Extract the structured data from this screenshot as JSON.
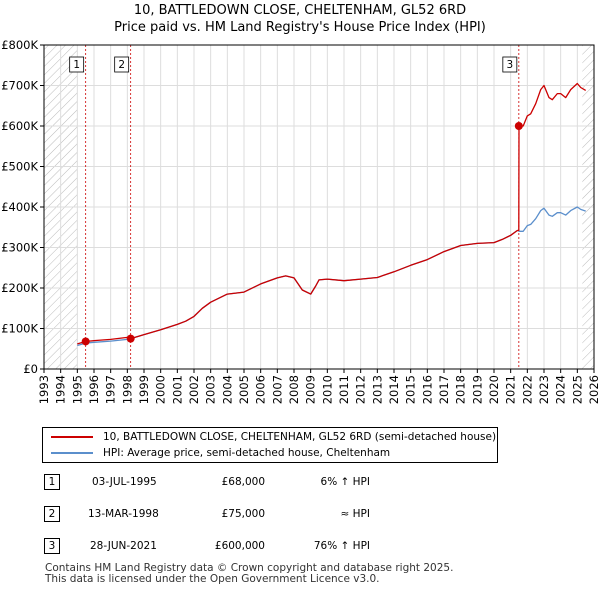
{
  "title_line1": "10, BATTLEDOWN CLOSE, CHELTENHAM, GL52 6RD",
  "title_line2": "Price paid vs. HM Land Registry's House Price Index (HPI)",
  "chart_data": {
    "type": "line",
    "xlim": [
      1993,
      2026
    ],
    "ylim": [
      0,
      800000
    ],
    "x_ticks": [
      "1993",
      "1994",
      "1995",
      "1996",
      "1997",
      "1998",
      "1999",
      "2000",
      "2001",
      "2002",
      "2003",
      "2004",
      "2005",
      "2006",
      "2007",
      "2008",
      "2009",
      "2010",
      "2011",
      "2012",
      "2013",
      "2014",
      "2015",
      "2016",
      "2017",
      "2018",
      "2019",
      "2020",
      "2021",
      "2022",
      "2023",
      "2024",
      "2025",
      "2026"
    ],
    "y_ticks": [
      {
        "value": 0,
        "label": "£0"
      },
      {
        "value": 100000,
        "label": "£100K"
      },
      {
        "value": 200000,
        "label": "£200K"
      },
      {
        "value": 300000,
        "label": "£300K"
      },
      {
        "value": 400000,
        "label": "£400K"
      },
      {
        "value": 500000,
        "label": "£500K"
      },
      {
        "value": 600000,
        "label": "£600K"
      },
      {
        "value": 700000,
        "label": "£700K"
      },
      {
        "value": 800000,
        "label": "£800K"
      }
    ],
    "hatched_ranges": [
      [
        1993,
        1995.0
      ],
      [
        2025.3,
        2026
      ]
    ],
    "series": [
      {
        "name": "10, BATTLEDOWN CLOSE, CHELTENHAM, GL52 6RD (semi-detached house)",
        "color": "#cc0000",
        "x": [
          1995.0,
          1995.5,
          1996,
          1997,
          1998,
          1998.2,
          1999,
          2000,
          2001,
          2001.5,
          2002,
          2002.5,
          2003,
          2004,
          2005,
          2006,
          2007,
          2007.5,
          2008,
          2008.5,
          2009,
          2009.3,
          2009.5,
          2010,
          2011,
          2012,
          2013,
          2014,
          2015,
          2016,
          2017,
          2018,
          2019,
          2020,
          2020.5,
          2021,
          2021.4,
          2021.49,
          2021.5,
          2021.75,
          2022,
          2022.2,
          2022.5,
          2022.8,
          2023,
          2023.3,
          2023.5,
          2023.8,
          2024,
          2024.3,
          2024.6,
          2025,
          2025.2,
          2025.5
        ],
        "values": [
          62000,
          68000,
          70000,
          73000,
          78000,
          75000,
          85000,
          97000,
          110000,
          118000,
          130000,
          150000,
          165000,
          185000,
          190000,
          210000,
          225000,
          230000,
          225000,
          195000,
          185000,
          205000,
          220000,
          222000,
          218000,
          222000,
          226000,
          240000,
          256000,
          270000,
          290000,
          305000,
          310000,
          312000,
          320000,
          330000,
          342000,
          342000,
          600000,
          600000,
          625000,
          630000,
          655000,
          690000,
          700000,
          670000,
          665000,
          680000,
          680000,
          670000,
          690000,
          705000,
          695000,
          688000
        ]
      },
      {
        "name": "HPI: Average price, semi-detached house, Cheltenham",
        "color": "#5b8fcc",
        "x": [
          1995.0,
          1995.5,
          1996,
          1997,
          1998,
          1998.2,
          1999,
          2000,
          2001,
          2001.5,
          2002,
          2002.5,
          2003,
          2004,
          2005,
          2006,
          2007,
          2007.5,
          2008,
          2008.5,
          2009,
          2009.3,
          2009.5,
          2010,
          2011,
          2012,
          2013,
          2014,
          2015,
          2016,
          2017,
          2018,
          2019,
          2020,
          2020.5,
          2021,
          2021.4,
          2021.49,
          2021.5,
          2021.75,
          2022,
          2022.2,
          2022.5,
          2022.8,
          2023,
          2023.3,
          2023.5,
          2023.8,
          2024,
          2024.3,
          2024.6,
          2025,
          2025.2,
          2025.5
        ],
        "values": [
          58000,
          64000,
          66000,
          69000,
          73000,
          75000,
          85000,
          97000,
          110000,
          118000,
          130000,
          150000,
          165000,
          185000,
          190000,
          210000,
          225000,
          230000,
          225000,
          195000,
          185000,
          205000,
          220000,
          222000,
          218000,
          222000,
          226000,
          240000,
          256000,
          270000,
          290000,
          305000,
          310000,
          312000,
          320000,
          330000,
          342000,
          342000,
          340000,
          340000,
          354000,
          357000,
          371000,
          391000,
          397000,
          380000,
          377000,
          386000,
          386000,
          380000,
          391000,
          400000,
          394000,
          390000
        ]
      }
    ],
    "sales": [
      {
        "label": "1",
        "x": 1995.5,
        "value": 68000
      },
      {
        "label": "2",
        "x": 1998.2,
        "value": 75000
      },
      {
        "label": "3",
        "x": 2021.49,
        "value": 600000
      }
    ],
    "legend": [
      {
        "label": "10, BATTLEDOWN CLOSE, CHELTENHAM, GL52 6RD (semi-detached house)",
        "color": "#cc0000"
      },
      {
        "label": "HPI: Average price, semi-detached house, Cheltenham",
        "color": "#5b8fcc"
      }
    ]
  },
  "transactions": [
    {
      "num": "1",
      "date": "03-JUL-1995",
      "price": "£68,000",
      "hpi": "6% ↑ HPI"
    },
    {
      "num": "2",
      "date": "13-MAR-1998",
      "price": "£75,000",
      "hpi": "≈ HPI"
    },
    {
      "num": "3",
      "date": "28-JUN-2021",
      "price": "£600,000",
      "hpi": "76% ↑ HPI"
    }
  ],
  "footer_line1": "Contains HM Land Registry data © Crown copyright and database right 2025.",
  "footer_line2": "This data is licensed under the Open Government Licence v3.0."
}
